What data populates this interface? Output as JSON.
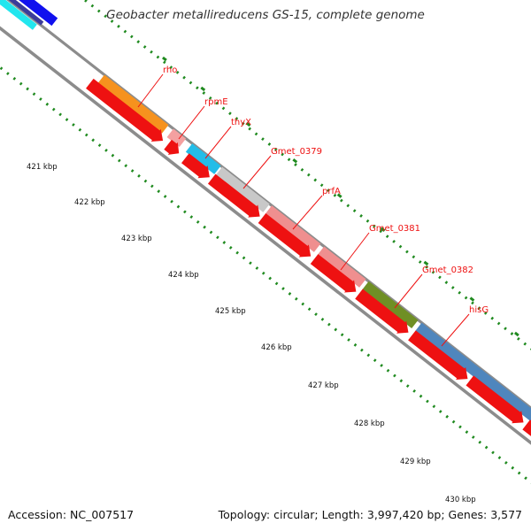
{
  "title": "Geobacter metallireducens GS-15, complete genome",
  "accession": "Accession: NC_007517",
  "topology": "Topology: circular; Length: 3,997,420 bp; Genes: 3,577",
  "colors": {
    "backbone": "#8c8c8c",
    "cds": "#ee1111",
    "gene_label": "#ee1111",
    "tick": "#1f8a1f"
  },
  "kbp_labels": [
    "421 kbp",
    "422 kbp",
    "423 kbp",
    "424 kbp",
    "425 kbp",
    "426 kbp",
    "427 kbp",
    "428 kbp",
    "429 kbp",
    "430 kbp"
  ],
  "genes": [
    {
      "name": "rho",
      "color": "#f6921e"
    },
    {
      "name": "rpmE",
      "color": "#f4a0a0"
    },
    {
      "name": "thyX",
      "color": "#23bde8"
    },
    {
      "name": "Gmet_0379",
      "color": "#c8c8c8"
    },
    {
      "name": "prfA",
      "color": "#ef8f8f"
    },
    {
      "name": "Gmet_0381",
      "color": "#ef8f8f"
    },
    {
      "name": "Gmet_0382",
      "color": "#6f8f25"
    },
    {
      "name": "hisG",
      "color": "#4f86bd"
    }
  ]
}
